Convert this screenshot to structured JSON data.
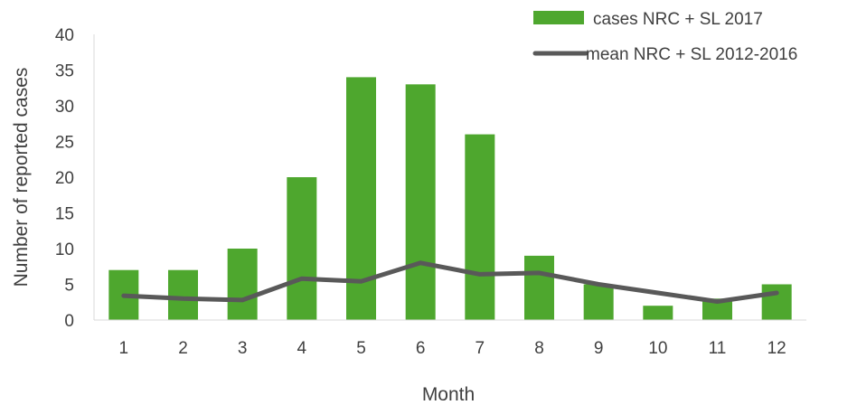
{
  "chart_data": {
    "type": "bar",
    "categories": [
      "1",
      "2",
      "3",
      "4",
      "5",
      "6",
      "7",
      "8",
      "9",
      "10",
      "11",
      "12"
    ],
    "series": [
      {
        "name": "cases NRC + SL 2017",
        "kind": "bar",
        "color": "#4ea72e",
        "values": [
          7,
          7,
          10,
          20,
          34,
          33,
          26,
          9,
          5,
          2,
          3,
          5
        ]
      },
      {
        "name": "mean NRC + SL 2012-2016",
        "kind": "line",
        "color": "#595959",
        "values": [
          3.4,
          3.0,
          2.8,
          5.8,
          5.4,
          8.0,
          6.4,
          6.6,
          5.0,
          3.8,
          2.6,
          3.8
        ]
      }
    ],
    "xlabel": "Month",
    "ylabel": "Number of reported cases",
    "ylim": [
      0,
      40
    ],
    "yticks": [
      0,
      5,
      10,
      15,
      20,
      25,
      30,
      35,
      40
    ],
    "grid": false,
    "legend_position": "top-right"
  }
}
